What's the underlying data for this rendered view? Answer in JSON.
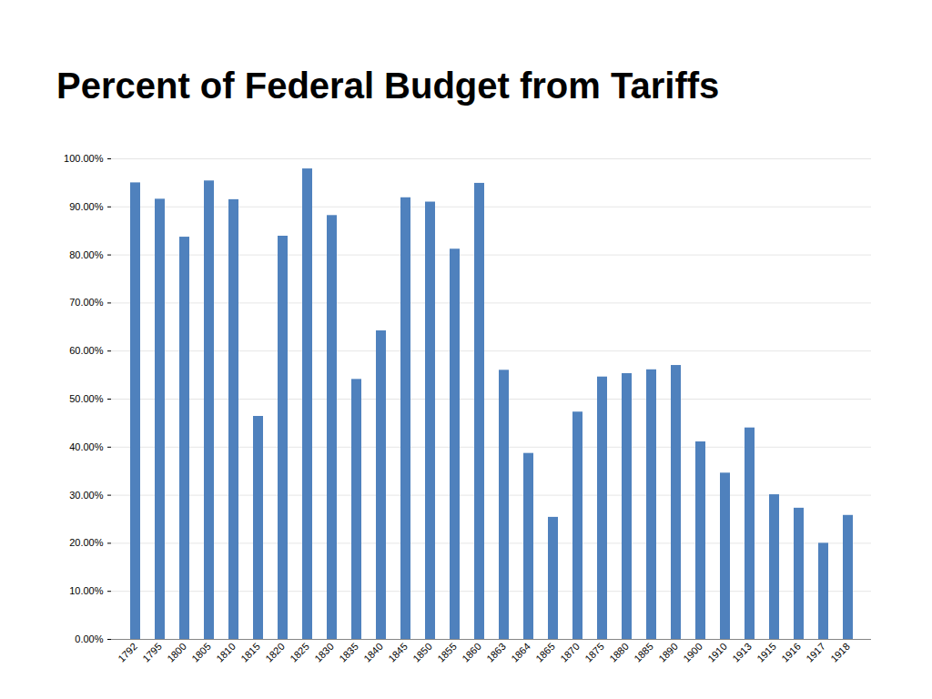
{
  "chart_data": {
    "type": "bar",
    "title": "Percent of Federal Budget from Tariffs",
    "categories": [
      "1792",
      "1795",
      "1800",
      "1805",
      "1810",
      "1815",
      "1820",
      "1825",
      "1830",
      "1835",
      "1840",
      "1845",
      "1850",
      "1855",
      "1860",
      "1863",
      "1864",
      "1865",
      "1870",
      "1875",
      "1880",
      "1885",
      "1890",
      "1900",
      "1910",
      "1913",
      "1915",
      "1916",
      "1917",
      "1918"
    ],
    "values": [
      95,
      91.6,
      83.7,
      95.4,
      91.5,
      46.4,
      83.9,
      97.9,
      88.2,
      54.1,
      64.2,
      91.9,
      91,
      81.2,
      94.9,
      56,
      38.7,
      25.4,
      47.3,
      54.6,
      55.3,
      56.1,
      57,
      41.1,
      34.6,
      44,
      30.1,
      27.3,
      20,
      25.8
    ],
    "color": "#4f81bd",
    "ylim": [
      0,
      100
    ],
    "yticks": [
      {
        "value": 0,
        "label": "0.00%"
      },
      {
        "value": 10,
        "label": "10.00%"
      },
      {
        "value": 20,
        "label": "20.00%"
      },
      {
        "value": 30,
        "label": "30.00%"
      },
      {
        "value": 40,
        "label": "40.00%"
      },
      {
        "value": 50,
        "label": "50.00%"
      },
      {
        "value": 60,
        "label": "60.00%"
      },
      {
        "value": 70,
        "label": "70.00%"
      },
      {
        "value": 80,
        "label": "80.00%"
      },
      {
        "value": 90,
        "label": "90.00%"
      },
      {
        "value": 100,
        "label": "100.00%"
      }
    ],
    "grid": true
  }
}
